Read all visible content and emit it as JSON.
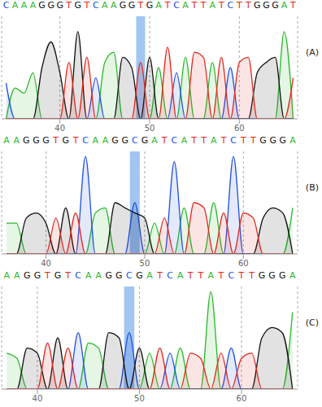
{
  "chart_data": [
    {
      "type": "area",
      "label": "(A)",
      "x": [
        34,
        35,
        36,
        37,
        38,
        39,
        40,
        41,
        42,
        43,
        44,
        45,
        46,
        47,
        48,
        49,
        50,
        51,
        52,
        53,
        54,
        55,
        56,
        57,
        58,
        59,
        60,
        61,
        62,
        63,
        64,
        65,
        66
      ],
      "bases": [
        "C",
        "A",
        "A",
        "A",
        "G",
        "G",
        "G",
        "T",
        "G",
        "T",
        "C",
        "A",
        "A",
        "G",
        "G",
        "T",
        "G",
        "A",
        "T",
        "C",
        "A",
        "T",
        "T",
        "A",
        "T",
        "C",
        "T",
        "T",
        "G",
        "G",
        "G",
        "A",
        "T"
      ],
      "highlight": [
        48.5,
        49.5
      ],
      "xlim": [
        33.5,
        66.5
      ],
      "xticks": [
        40,
        50,
        60
      ],
      "ylim": [
        0,
        100
      ],
      "grid": true,
      "tick_labels": "x",
      "series": [
        {
          "name": "A",
          "color": "#2db82d",
          "values": [
            0,
            30,
            25,
            45,
            0,
            0,
            0,
            0,
            0,
            0,
            0,
            55,
            65,
            0,
            0,
            0,
            0,
            50,
            0,
            0,
            60,
            0,
            0,
            55,
            0,
            0,
            0,
            0,
            0,
            0,
            0,
            85,
            0
          ]
        },
        {
          "name": "C",
          "color": "#2050e0",
          "values": [
            35,
            0,
            0,
            0,
            0,
            0,
            0,
            0,
            0,
            0,
            40,
            0,
            0,
            0,
            0,
            0,
            0,
            0,
            0,
            45,
            0,
            0,
            0,
            0,
            0,
            50,
            0,
            0,
            0,
            0,
            0,
            0,
            0
          ]
        },
        {
          "name": "G",
          "color": "#111111",
          "values": [
            0,
            0,
            0,
            0,
            50,
            75,
            45,
            0,
            85,
            0,
            0,
            0,
            0,
            60,
            50,
            0,
            60,
            0,
            0,
            0,
            0,
            0,
            0,
            0,
            0,
            0,
            0,
            0,
            45,
            55,
            60,
            0,
            0
          ]
        },
        {
          "name": "T",
          "color": "#e0281e",
          "values": [
            0,
            0,
            0,
            0,
            0,
            0,
            0,
            55,
            0,
            60,
            0,
            0,
            0,
            0,
            0,
            55,
            0,
            0,
            70,
            0,
            0,
            65,
            60,
            0,
            60,
            0,
            55,
            60,
            0,
            0,
            0,
            0,
            40
          ]
        }
      ]
    },
    {
      "type": "area",
      "label": "(B)",
      "x": [
        36,
        37,
        38,
        39,
        40,
        41,
        42,
        43,
        44,
        45,
        46,
        47,
        48,
        49,
        50,
        51,
        52,
        53,
        54,
        55,
        56,
        57,
        58,
        59,
        60,
        61,
        62,
        63,
        64,
        65
      ],
      "bases": [
        "A",
        "A",
        "G",
        "G",
        "G",
        "T",
        "G",
        "T",
        "C",
        "A",
        "A",
        "G",
        "G",
        "C",
        "G",
        "A",
        "T",
        "C",
        "A",
        "T",
        "T",
        "A",
        "T",
        "C",
        "T",
        "T",
        "G",
        "G",
        "G",
        "A"
      ],
      "highlight": [
        48.5,
        49.5
      ],
      "xlim": [
        35.5,
        65.5
      ],
      "xticks": [
        40,
        50,
        60
      ],
      "ylim": [
        0,
        100
      ],
      "grid": true,
      "tick_labels": "x",
      "series": [
        {
          "name": "A",
          "color": "#2db82d",
          "values": [
            30,
            30,
            0,
            0,
            0,
            0,
            0,
            0,
            0,
            40,
            45,
            0,
            0,
            0,
            0,
            30,
            0,
            0,
            45,
            0,
            0,
            50,
            0,
            0,
            0,
            0,
            0,
            0,
            0,
            45
          ]
        },
        {
          "name": "C",
          "color": "#2050e0",
          "values": [
            0,
            0,
            0,
            0,
            0,
            0,
            0,
            0,
            95,
            0,
            0,
            0,
            0,
            50,
            0,
            0,
            0,
            90,
            0,
            0,
            0,
            0,
            0,
            95,
            0,
            0,
            0,
            0,
            0,
            0
          ]
        },
        {
          "name": "G",
          "color": "#111111",
          "values": [
            0,
            0,
            35,
            40,
            30,
            0,
            45,
            0,
            0,
            0,
            0,
            50,
            45,
            40,
            35,
            0,
            0,
            0,
            0,
            0,
            0,
            0,
            0,
            0,
            0,
            0,
            35,
            45,
            40,
            0
          ]
        },
        {
          "name": "T",
          "color": "#e0281e",
          "values": [
            0,
            0,
            0,
            0,
            0,
            35,
            0,
            40,
            0,
            0,
            0,
            0,
            0,
            0,
            0,
            0,
            35,
            0,
            0,
            50,
            45,
            0,
            40,
            0,
            40,
            35,
            0,
            0,
            0,
            0
          ]
        }
      ]
    },
    {
      "type": "area",
      "label": "(C)",
      "x": [
        37,
        38,
        39,
        40,
        41,
        42,
        43,
        44,
        45,
        46,
        47,
        48,
        49,
        50,
        51,
        52,
        53,
        54,
        55,
        56,
        57,
        58,
        59,
        60,
        61,
        62,
        63,
        64,
        65
      ],
      "bases": [
        "A",
        "A",
        "G",
        "G",
        "T",
        "G",
        "T",
        "C",
        "A",
        "A",
        "G",
        "G",
        "C",
        "G",
        "A",
        "T",
        "C",
        "A",
        "T",
        "T",
        "A",
        "T",
        "C",
        "T",
        "T",
        "G",
        "G",
        "G",
        "A"
      ],
      "highlight": [
        48.5,
        49.5
      ],
      "xlim": [
        36.5,
        65.5
      ],
      "xticks": [
        40,
        50,
        60
      ],
      "ylim": [
        0,
        100
      ],
      "grid": true,
      "tick_labels": "x",
      "series": [
        {
          "name": "A",
          "color": "#2db82d",
          "values": [
            35,
            30,
            0,
            0,
            0,
            0,
            0,
            0,
            45,
            40,
            0,
            0,
            0,
            0,
            35,
            0,
            0,
            40,
            0,
            0,
            95,
            0,
            0,
            0,
            0,
            0,
            0,
            0,
            75
          ]
        },
        {
          "name": "C",
          "color": "#2050e0",
          "values": [
            0,
            0,
            0,
            0,
            0,
            0,
            0,
            55,
            0,
            0,
            0,
            0,
            55,
            0,
            0,
            0,
            35,
            0,
            0,
            0,
            0,
            0,
            40,
            0,
            0,
            0,
            0,
            0,
            0
          ]
        },
        {
          "name": "G",
          "color": "#111111",
          "values": [
            0,
            0,
            40,
            35,
            0,
            50,
            0,
            0,
            0,
            0,
            55,
            50,
            0,
            40,
            0,
            0,
            0,
            0,
            0,
            0,
            0,
            0,
            0,
            0,
            0,
            50,
            60,
            55,
            0
          ]
        },
        {
          "name": "T",
          "color": "#e0281e",
          "values": [
            0,
            0,
            0,
            0,
            45,
            0,
            40,
            0,
            0,
            0,
            0,
            0,
            0,
            0,
            0,
            40,
            0,
            0,
            35,
            30,
            0,
            35,
            0,
            30,
            35,
            0,
            0,
            0,
            0
          ]
        }
      ]
    }
  ]
}
